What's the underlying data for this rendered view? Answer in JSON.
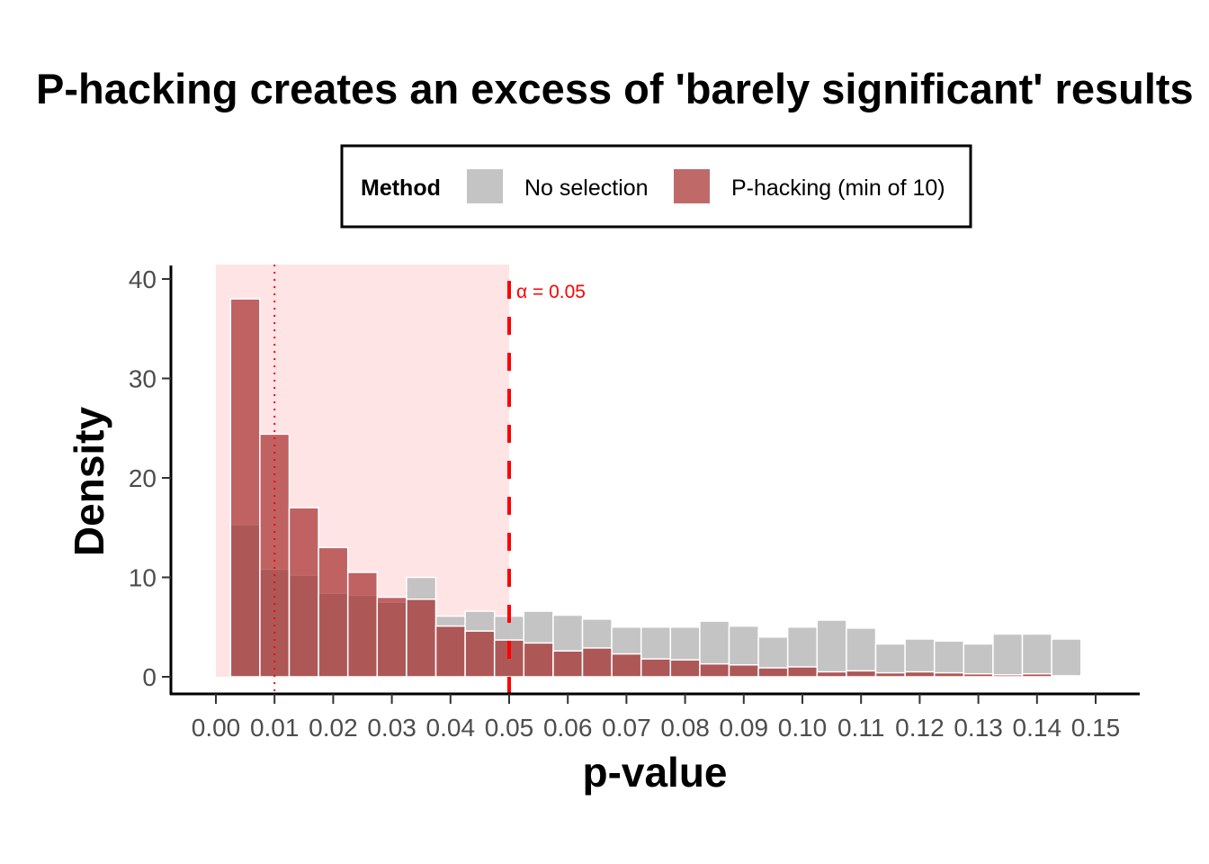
{
  "chart_data": {
    "type": "bar",
    "subtype": "overlaid histogram (density)",
    "title": "P-hacking creates an excess of 'barely significant' results",
    "xlabel": "p-value",
    "ylabel": "Density",
    "xlim": [
      -0.0077,
      0.157
    ],
    "ylim": [
      -1.7,
      41.3
    ],
    "x_ticks": [
      "0.00",
      "0.01",
      "0.02",
      "0.03",
      "0.04",
      "0.05",
      "0.06",
      "0.07",
      "0.08",
      "0.09",
      "0.10",
      "0.11",
      "0.12",
      "0.13",
      "0.14",
      "0.15"
    ],
    "y_ticks": [
      "0",
      "10",
      "20",
      "30",
      "40"
    ],
    "bin_width": 0.005,
    "bin_centers": [
      0.005,
      0.01,
      0.015,
      0.02,
      0.025,
      0.03,
      0.035,
      0.04,
      0.045,
      0.05,
      0.055,
      0.06,
      0.065,
      0.07,
      0.075,
      0.08,
      0.085,
      0.09,
      0.095,
      0.1,
      0.105,
      0.11,
      0.115,
      0.12,
      0.125,
      0.13,
      0.135,
      0.14,
      0.145
    ],
    "grid": false,
    "legend": {
      "title": "Method",
      "placement": "top"
    },
    "series": [
      {
        "name": "No selection",
        "color": "#bebebe",
        "values": [
          15.3,
          10.8,
          10.2,
          8.4,
          8.2,
          7.5,
          10.0,
          6.1,
          6.6,
          6.1,
          6.6,
          6.2,
          5.8,
          5.0,
          5.0,
          5.0,
          5.6,
          5.1,
          4.0,
          5.0,
          5.7,
          4.9,
          3.3,
          3.8,
          3.6,
          3.3,
          4.3,
          4.3,
          3.8
        ]
      },
      {
        "name": "P-hacking (min of 10)",
        "color": "#a52a2a",
        "values": [
          38.0,
          24.4,
          17.0,
          13.0,
          10.5,
          8.0,
          7.8,
          5.1,
          4.6,
          3.7,
          3.4,
          2.6,
          2.9,
          2.3,
          1.8,
          1.7,
          1.3,
          1.2,
          0.9,
          1.0,
          0.5,
          0.6,
          0.4,
          0.5,
          0.4,
          0.3,
          0.2,
          0.3,
          0.1
        ]
      }
    ],
    "annotations": {
      "significance_region": {
        "from": 0.0,
        "to": 0.05,
        "color": "#ffe4e6"
      },
      "alpha_line": {
        "x": 0.05,
        "style": "dashed",
        "color": "#ff0000",
        "label": "α = 0.05"
      },
      "reference_line": {
        "x": 0.01,
        "style": "dotted",
        "color": "#ff0000"
      }
    }
  }
}
